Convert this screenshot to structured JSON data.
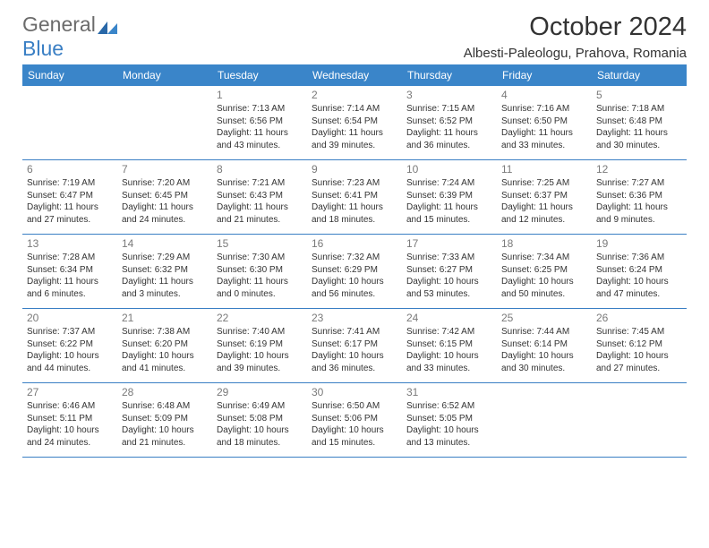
{
  "logo": {
    "text1": "General",
    "text2": "Blue",
    "color_general": "#6b6b6b",
    "color_blue": "#3a7fc4",
    "icon_color": "#2968a8"
  },
  "title": "October 2024",
  "location": "Albesti-Paleologu, Prahova, Romania",
  "header_bg": "#3a85c9",
  "header_text_color": "#ffffff",
  "border_color": "#3a7fc4",
  "day_number_color": "#7a7a7a",
  "text_color": "#333333",
  "day_names": [
    "Sunday",
    "Monday",
    "Tuesday",
    "Wednesday",
    "Thursday",
    "Friday",
    "Saturday"
  ],
  "weeks": [
    [
      null,
      null,
      {
        "num": "1",
        "sunrise": "Sunrise: 7:13 AM",
        "sunset": "Sunset: 6:56 PM",
        "daylight": "Daylight: 11 hours and 43 minutes."
      },
      {
        "num": "2",
        "sunrise": "Sunrise: 7:14 AM",
        "sunset": "Sunset: 6:54 PM",
        "daylight": "Daylight: 11 hours and 39 minutes."
      },
      {
        "num": "3",
        "sunrise": "Sunrise: 7:15 AM",
        "sunset": "Sunset: 6:52 PM",
        "daylight": "Daylight: 11 hours and 36 minutes."
      },
      {
        "num": "4",
        "sunrise": "Sunrise: 7:16 AM",
        "sunset": "Sunset: 6:50 PM",
        "daylight": "Daylight: 11 hours and 33 minutes."
      },
      {
        "num": "5",
        "sunrise": "Sunrise: 7:18 AM",
        "sunset": "Sunset: 6:48 PM",
        "daylight": "Daylight: 11 hours and 30 minutes."
      }
    ],
    [
      {
        "num": "6",
        "sunrise": "Sunrise: 7:19 AM",
        "sunset": "Sunset: 6:47 PM",
        "daylight": "Daylight: 11 hours and 27 minutes."
      },
      {
        "num": "7",
        "sunrise": "Sunrise: 7:20 AM",
        "sunset": "Sunset: 6:45 PM",
        "daylight": "Daylight: 11 hours and 24 minutes."
      },
      {
        "num": "8",
        "sunrise": "Sunrise: 7:21 AM",
        "sunset": "Sunset: 6:43 PM",
        "daylight": "Daylight: 11 hours and 21 minutes."
      },
      {
        "num": "9",
        "sunrise": "Sunrise: 7:23 AM",
        "sunset": "Sunset: 6:41 PM",
        "daylight": "Daylight: 11 hours and 18 minutes."
      },
      {
        "num": "10",
        "sunrise": "Sunrise: 7:24 AM",
        "sunset": "Sunset: 6:39 PM",
        "daylight": "Daylight: 11 hours and 15 minutes."
      },
      {
        "num": "11",
        "sunrise": "Sunrise: 7:25 AM",
        "sunset": "Sunset: 6:37 PM",
        "daylight": "Daylight: 11 hours and 12 minutes."
      },
      {
        "num": "12",
        "sunrise": "Sunrise: 7:27 AM",
        "sunset": "Sunset: 6:36 PM",
        "daylight": "Daylight: 11 hours and 9 minutes."
      }
    ],
    [
      {
        "num": "13",
        "sunrise": "Sunrise: 7:28 AM",
        "sunset": "Sunset: 6:34 PM",
        "daylight": "Daylight: 11 hours and 6 minutes."
      },
      {
        "num": "14",
        "sunrise": "Sunrise: 7:29 AM",
        "sunset": "Sunset: 6:32 PM",
        "daylight": "Daylight: 11 hours and 3 minutes."
      },
      {
        "num": "15",
        "sunrise": "Sunrise: 7:30 AM",
        "sunset": "Sunset: 6:30 PM",
        "daylight": "Daylight: 11 hours and 0 minutes."
      },
      {
        "num": "16",
        "sunrise": "Sunrise: 7:32 AM",
        "sunset": "Sunset: 6:29 PM",
        "daylight": "Daylight: 10 hours and 56 minutes."
      },
      {
        "num": "17",
        "sunrise": "Sunrise: 7:33 AM",
        "sunset": "Sunset: 6:27 PM",
        "daylight": "Daylight: 10 hours and 53 minutes."
      },
      {
        "num": "18",
        "sunrise": "Sunrise: 7:34 AM",
        "sunset": "Sunset: 6:25 PM",
        "daylight": "Daylight: 10 hours and 50 minutes."
      },
      {
        "num": "19",
        "sunrise": "Sunrise: 7:36 AM",
        "sunset": "Sunset: 6:24 PM",
        "daylight": "Daylight: 10 hours and 47 minutes."
      }
    ],
    [
      {
        "num": "20",
        "sunrise": "Sunrise: 7:37 AM",
        "sunset": "Sunset: 6:22 PM",
        "daylight": "Daylight: 10 hours and 44 minutes."
      },
      {
        "num": "21",
        "sunrise": "Sunrise: 7:38 AM",
        "sunset": "Sunset: 6:20 PM",
        "daylight": "Daylight: 10 hours and 41 minutes."
      },
      {
        "num": "22",
        "sunrise": "Sunrise: 7:40 AM",
        "sunset": "Sunset: 6:19 PM",
        "daylight": "Daylight: 10 hours and 39 minutes."
      },
      {
        "num": "23",
        "sunrise": "Sunrise: 7:41 AM",
        "sunset": "Sunset: 6:17 PM",
        "daylight": "Daylight: 10 hours and 36 minutes."
      },
      {
        "num": "24",
        "sunrise": "Sunrise: 7:42 AM",
        "sunset": "Sunset: 6:15 PM",
        "daylight": "Daylight: 10 hours and 33 minutes."
      },
      {
        "num": "25",
        "sunrise": "Sunrise: 7:44 AM",
        "sunset": "Sunset: 6:14 PM",
        "daylight": "Daylight: 10 hours and 30 minutes."
      },
      {
        "num": "26",
        "sunrise": "Sunrise: 7:45 AM",
        "sunset": "Sunset: 6:12 PM",
        "daylight": "Daylight: 10 hours and 27 minutes."
      }
    ],
    [
      {
        "num": "27",
        "sunrise": "Sunrise: 6:46 AM",
        "sunset": "Sunset: 5:11 PM",
        "daylight": "Daylight: 10 hours and 24 minutes."
      },
      {
        "num": "28",
        "sunrise": "Sunrise: 6:48 AM",
        "sunset": "Sunset: 5:09 PM",
        "daylight": "Daylight: 10 hours and 21 minutes."
      },
      {
        "num": "29",
        "sunrise": "Sunrise: 6:49 AM",
        "sunset": "Sunset: 5:08 PM",
        "daylight": "Daylight: 10 hours and 18 minutes."
      },
      {
        "num": "30",
        "sunrise": "Sunrise: 6:50 AM",
        "sunset": "Sunset: 5:06 PM",
        "daylight": "Daylight: 10 hours and 15 minutes."
      },
      {
        "num": "31",
        "sunrise": "Sunrise: 6:52 AM",
        "sunset": "Sunset: 5:05 PM",
        "daylight": "Daylight: 10 hours and 13 minutes."
      },
      null,
      null
    ]
  ]
}
